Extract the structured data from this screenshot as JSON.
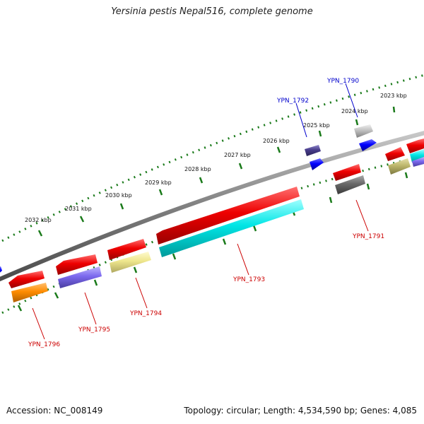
{
  "title": "Yersinia pestis Nepal516, complete genome",
  "footer": {
    "accession": "Accession: NC_008149",
    "summary": "Topology: circular; Length: 4,534,590 bp; Genes: 4,085"
  },
  "scale_labels": [
    "2023 kbp",
    "2024 kbp",
    "2025 kbp",
    "2026 kbp",
    "2027 kbp",
    "2028 kbp",
    "2029 kbp",
    "2030 kbp",
    "2031 kbp",
    "2032 kbp"
  ],
  "gene_labels": {
    "YPN_1790": "YPN_1790",
    "YPN_1791": "YPN_1791",
    "YPN_1792": "YPN_1792",
    "YPN_1793": "YPN_1793",
    "YPN_1794": "YPN_1794",
    "YPN_1795": "YPN_1795",
    "YPN_1796": "YPN_1796"
  },
  "colors": {
    "forward_label": "#0000cc",
    "reverse_label": "#cc0000",
    "backbone": "#808080",
    "scale_ticks": "#1a7a1a",
    "cds_red": "#ee0000",
    "cyan": "#00e5e5",
    "khaki": "#eee68c",
    "slate": "#7b68ee",
    "orange": "#ff8c00",
    "dark_slate": "#483d8b",
    "blue": "#0000ff",
    "silver": "#c0c0c0",
    "dim_gray": "#696969",
    "dark_khaki": "#bdb76b"
  }
}
